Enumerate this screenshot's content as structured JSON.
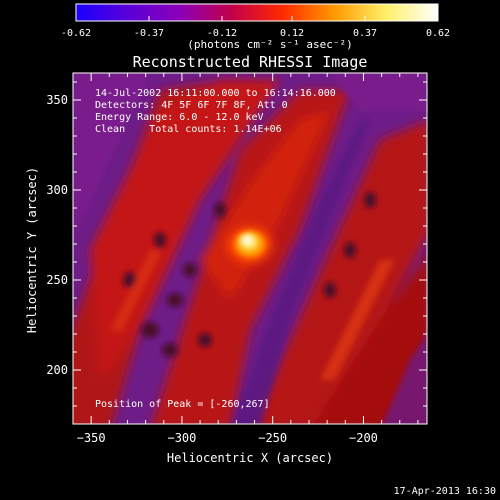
{
  "colorbar": {
    "min": -0.62,
    "max": 0.62,
    "tick_labels": [
      "-0.62",
      "-0.37",
      "-0.12",
      "0.12",
      "0.37",
      "0.62"
    ],
    "unit_label": "(photons cm⁻² s⁻¹ asec⁻²)",
    "colormap_stops": [
      "#1a00ff",
      "#5a00d8",
      "#8a00b8",
      "#c2004a",
      "#ff2a00",
      "#ff9a00",
      "#fff06a",
      "#ffffff"
    ]
  },
  "chart_data": {
    "type": "heatmap",
    "title": "Reconstructed RHESSI Image",
    "xlabel": "Heliocentric X (arcsec)",
    "ylabel": "Heliocentric Y (arcsec)",
    "xlim": [
      -360,
      -165
    ],
    "ylim": [
      170,
      365
    ],
    "x_ticks": [
      -350,
      -300,
      -250,
      -200
    ],
    "y_ticks": [
      200,
      250,
      300,
      350
    ],
    "peak": [
      -260,
      267
    ],
    "background_color": "#7a1e8c"
  },
  "annotations": {
    "time_range": "14-Jul-2002 16:11:00.000 to 16:14:16.000",
    "detectors": "Detectors: 4F 5F 6F 7F 8F, Att 0",
    "energy_range": "Energy Range: 6.0 - 12.0 keV",
    "clean_line": "Clean    Total counts: 1.14E+06",
    "peak_position": "Position of Peak = [-260,267]"
  },
  "footer": {
    "timestamp": "17-Apr-2013 16:30"
  }
}
